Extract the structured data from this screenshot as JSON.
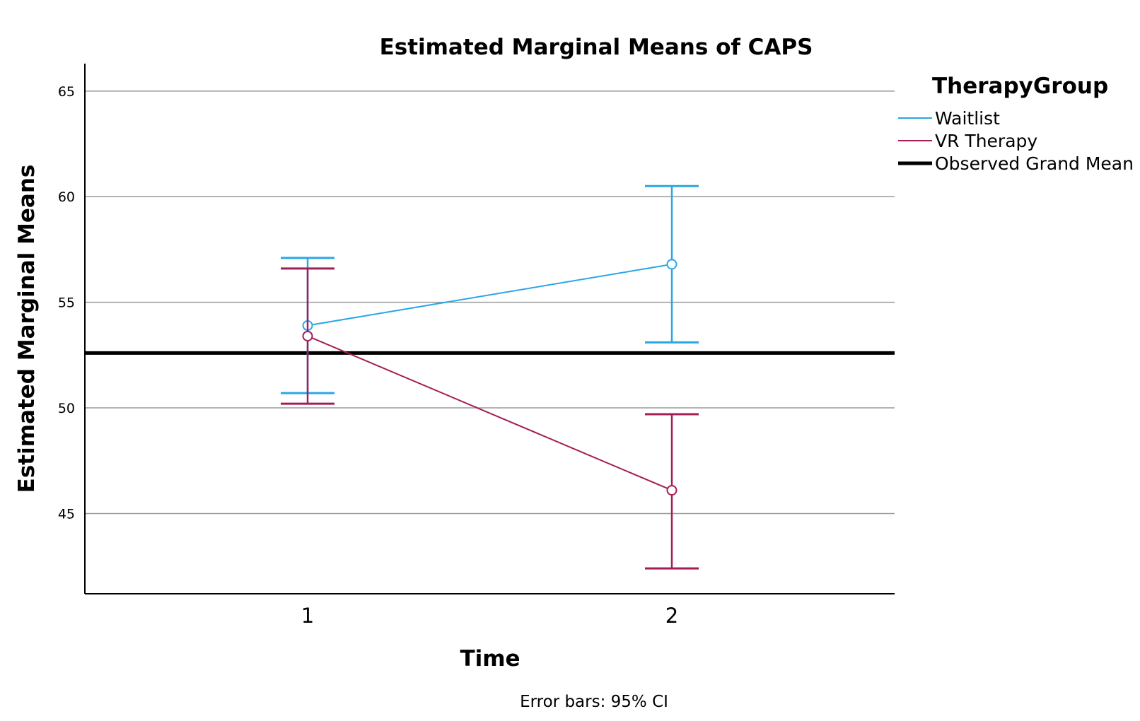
{
  "chart_data": {
    "type": "line",
    "title": "Estimated Marginal Means of CAPS",
    "xlabel": "Time",
    "ylabel": "Estimated Marginal Means",
    "categories": [
      "1",
      "2"
    ],
    "y_ticks": [
      "45",
      "50",
      "55",
      "60",
      "65"
    ],
    "ylim": [
      41.2,
      66.3
    ],
    "grid": true,
    "legend": {
      "title": "TherapyGroup",
      "placement": "top-right"
    },
    "series": [
      {
        "name": "Waitlist",
        "color": "#2aa6e6",
        "values": [
          53.9,
          56.8
        ],
        "ci_lower": [
          50.7,
          53.1
        ],
        "ci_upper": [
          57.1,
          60.5
        ]
      },
      {
        "name": "VR Therapy",
        "color": "#a51d55",
        "values": [
          53.4,
          46.1
        ],
        "ci_lower": [
          50.2,
          42.4
        ],
        "ci_upper": [
          56.6,
          49.7
        ]
      }
    ],
    "reference_line": {
      "name": "Observed Grand Mean",
      "value": 52.6,
      "color": "#000000"
    },
    "note": "Error bars: 95% CI"
  }
}
